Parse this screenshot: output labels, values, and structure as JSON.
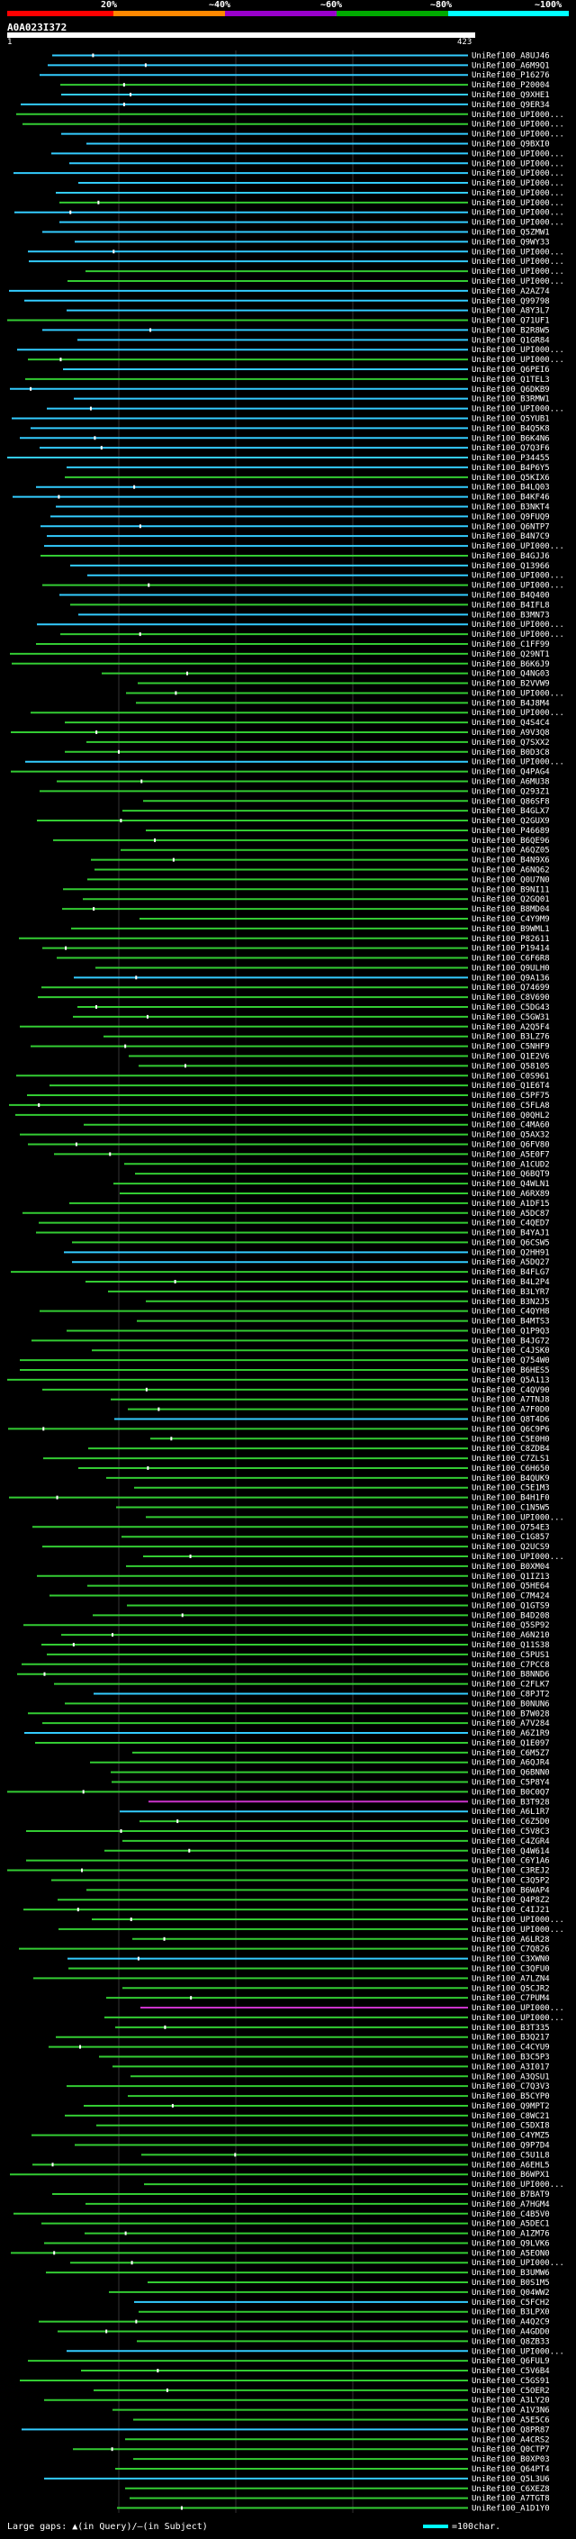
{
  "scale": {
    "labels": [
      "20%",
      "~40%",
      "~60%",
      "~80%",
      "~100%"
    ],
    "colors": [
      "#ff0000",
      "#ff8800",
      "#9900cc",
      "#00aa00",
      "#00ffff"
    ]
  },
  "query": {
    "id": "A0A023I372",
    "start": "1",
    "end": "423"
  },
  "colors": {
    "cyan": "#33ccff",
    "green": "#33cc33",
    "magenta": "#cc33cc",
    "gap": "#ffffff"
  },
  "hits": [
    "UniRef100_A8UJ46",
    "UniRef100_A6M9Q1",
    "UniRef100_P16276",
    "UniRef100_P20004",
    "UniRef100_Q9XHE1",
    "UniRef100_Q9ER34",
    "UniRef100_UPI000...",
    "UniRef100_UPI000...",
    "UniRef100_UPI000...",
    "UniRef100_Q9BXI0",
    "UniRef100_UPI000...",
    "UniRef100_UPI000...",
    "UniRef100_UPI000...",
    "UniRef100_UPI000...",
    "UniRef100_UPI000...",
    "UniRef100_UPI000...",
    "UniRef100_UPI000...",
    "UniRef100_UPI000...",
    "UniRef100_Q5ZMW1",
    "UniRef100_Q9WY33",
    "UniRef100_UPI000...",
    "UniRef100_UPI000...",
    "UniRef100_UPI000...",
    "UniRef100_UPI000...",
    "UniRef100_A2AZ74",
    "UniRef100_Q99798",
    "UniRef100_A8Y3L7",
    "UniRef100_Q71UF1",
    "UniRef100_B2R8W5",
    "UniRef100_Q1GR84",
    "UniRef100_UPI000...",
    "UniRef100_UPI000...",
    "UniRef100_Q6PEI6",
    "UniRef100_Q1TEL3",
    "UniRef100_Q6DKB9",
    "UniRef100_B3RMW1",
    "UniRef100_UPI000...",
    "UniRef100_Q5YUB1",
    "UniRef100_B4Q5K8",
    "UniRef100_B6K4N6",
    "UniRef100_Q7Q3F6",
    "UniRef100_P34455",
    "UniRef100_B4P6Y5",
    "UniRef100_Q5KIX6",
    "UniRef100_B4LQ03",
    "UniRef100_B4KF46",
    "UniRef100_B3NKT4",
    "UniRef100_Q9FUQ9",
    "UniRef100_Q6NTP7",
    "UniRef100_B4N7C9",
    "UniRef100_UPI000...",
    "UniRef100_B4GJJ6",
    "UniRef100_Q13966",
    "UniRef100_UPI000...",
    "UniRef100_UPI000...",
    "UniRef100_B4Q400",
    "UniRef100_B4IFL8",
    "UniRef100_B3MN73",
    "UniRef100_UPI000...",
    "UniRef100_UPI000...",
    "UniRef100_C1FF99",
    "UniRef100_Q29NT1",
    "UniRef100_B6K6J9",
    "UniRef100_Q4NG03",
    "UniRef100_B2VVW9",
    "UniRef100_UPI000...",
    "UniRef100_B4J8M4",
    "UniRef100_UPI000...",
    "UniRef100_Q4S4C4",
    "UniRef100_A9V3Q8",
    "UniRef100_Q7SXX2",
    "UniRef100_B0D3C8",
    "UniRef100_UPI000...",
    "UniRef100_Q4PAG4",
    "UniRef100_A6MU38",
    "UniRef100_Q293Z1",
    "UniRef100_Q86SF8",
    "UniRef100_B4GLX7",
    "UniRef100_Q2GUX9",
    "UniRef100_P46689",
    "UniRef100_B6QE96",
    "UniRef100_A6QZ05",
    "UniRef100_B4N9X6",
    "UniRef100_A6NQ62",
    "UniRef100_Q0U7N0",
    "UniRef100_B9NI11",
    "UniRef100_Q2GQ01",
    "UniRef100_B8MD04",
    "UniRef100_C4Y9M9",
    "UniRef100_B9WML1",
    "UniRef100_P82611",
    "UniRef100_P19414",
    "UniRef100_C6F6R8",
    "UniRef100_Q9ULH0",
    "UniRef100_Q9A136",
    "UniRef100_Q74699",
    "UniRef100_C8V690",
    "UniRef100_C5DG43",
    "UniRef100_C5GW31",
    "UniRef100_A2Q5F4",
    "UniRef100_B3LZ76",
    "UniRef100_C5NHF9",
    "UniRef100_Q1E2V6",
    "UniRef100_Q58105",
    "UniRef100_C0S961",
    "UniRef100_Q1E6T4",
    "UniRef100_C5PF75",
    "UniRef100_C5FLA8",
    "UniRef100_Q0QHL2",
    "UniRef100_C4MA60",
    "UniRef100_Q5AX32",
    "UniRef100_Q6FV80",
    "UniRef100_A5E0F7",
    "UniRef100_A1CUD2",
    "UniRef100_Q6BQT9",
    "UniRef100_Q4WLN1",
    "UniRef100_A6RX89",
    "UniRef100_A1DF15",
    "UniRef100_A5DC87",
    "UniRef100_C4QED7",
    "UniRef100_B4YAJ1",
    "UniRef100_Q6CSW5",
    "UniRef100_Q2HH91",
    "UniRef100_A5DQ27",
    "UniRef100_B4FLG7",
    "UniRef100_B4L2P4",
    "UniRef100_B3LYR7",
    "UniRef100_B3N2J5",
    "UniRef100_C4QYH8",
    "UniRef100_B4MTS3",
    "UniRef100_Q1P9Q3",
    "UniRef100_B4JG72",
    "UniRef100_C4JSK0",
    "UniRef100_Q754W0",
    "UniRef100_B6HES5",
    "UniRef100_Q5A113",
    "UniRef100_C4QV90",
    "UniRef100_A7TNJ8",
    "UniRef100_A7F0D0",
    "UniRef100_Q8T4D6",
    "UniRef100_Q6C9P6",
    "UniRef100_C5E0H0",
    "UniRef100_C8ZDB4",
    "UniRef100_C7ZLS1",
    "UniRef100_C6H650",
    "UniRef100_B4QUK9",
    "UniRef100_C5E1M3",
    "UniRef100_B4H1F0",
    "UniRef100_C1N5W5",
    "UniRef100_UPI000...",
    "UniRef100_Q754E3",
    "UniRef100_C1G857",
    "UniRef100_Q2UCS9",
    "UniRef100_UPI000...",
    "UniRef100_B0XM04",
    "UniRef100_Q1IZ13",
    "UniRef100_Q5HE64",
    "UniRef100_C7M424",
    "UniRef100_Q1GTS9",
    "UniRef100_B4D208",
    "UniRef100_Q5SP92",
    "UniRef100_A6N210",
    "UniRef100_Q11S38",
    "UniRef100_C5PUS1",
    "UniRef100_C7PCC8",
    "UniRef100_B8NND6",
    "UniRef100_C2FLK7",
    "UniRef100_C8PJT2",
    "UniRef100_B0NUN6",
    "UniRef100_B7W028",
    "UniRef100_A7V284",
    "UniRef100_A6Z1R9",
    "UniRef100_Q1E097",
    "UniRef100_C6M5Z7",
    "UniRef100_A6QJR4",
    "UniRef100_Q6BNN0",
    "UniRef100_C5P8Y4",
    "UniRef100_B0C0Q7",
    "UniRef100_B3T928",
    "UniRef100_A6L1R7",
    "UniRef100_C6Z5D0",
    "UniRef100_C5V8C3",
    "UniRef100_C4ZGR4",
    "UniRef100_Q4W614",
    "UniRef100_C6Y1A6",
    "UniRef100_C3REJ2",
    "UniRef100_C3Q5P2",
    "UniRef100_B6WAP4",
    "UniRef100_Q4P8Z2",
    "UniRef100_C4IJ21",
    "UniRef100_UPI000...",
    "UniRef100_UPI000...",
    "UniRef100_A6LR28",
    "UniRef100_C7Q826",
    "UniRef100_C3XWN0",
    "UniRef100_C3QFU0",
    "UniRef100_A7LZN4",
    "UniRef100_Q5CJR2",
    "UniRef100_C7PUM4",
    "UniRef100_UPI000...",
    "UniRef100_UPI000...",
    "UniRef100_B3T335",
    "UniRef100_B3Q217",
    "UniRef100_C4CYU9",
    "UniRef100_B3C5P3",
    "UniRef100_A3I017",
    "UniRef100_A3QSU1",
    "UniRef100_C7Q3V3",
    "UniRef100_B5CYP0",
    "UniRef100_Q9MPT2",
    "UniRef100_C8WC21",
    "UniRef100_C5DXI8",
    "UniRef100_C4YMZ5",
    "UniRef100_Q9P7D4",
    "UniRef100_C5U1L8",
    "UniRef100_A6EHL5",
    "UniRef100_B6WPX1",
    "UniRef100_UPI000...",
    "UniRef100_B7BAT9",
    "UniRef100_A7HGM4",
    "UniRef100_C4B5V0",
    "UniRef100_A5DEC1",
    "UniRef100_A1ZM76",
    "UniRef100_Q9LVK6",
    "UniRef100_A5EON0",
    "UniRef100_UPI000...",
    "UniRef100_B3UMW6",
    "UniRef100_B0S1M5",
    "UniRef100_Q04WW2",
    "UniRef100_C5FCH2",
    "UniRef100_B3LPX0",
    "UniRef100_A4Q2C9",
    "UniRef100_A4GDD0",
    "UniRef100_Q8ZB33",
    "UniRef100_UPI000...",
    "UniRef100_Q6FUL9",
    "UniRef100_C5V6B4",
    "UniRef100_C5GS91",
    "UniRef100_C5OER2",
    "UniRef100_A3LY20",
    "UniRef100_A1V3N6",
    "UniRef100_A5E5C6",
    "UniRef100_Q8PR87",
    "UniRef100_A4CRS2",
    "UniRef100_Q0CTP7",
    "UniRef100_B0XP03",
    "UniRef100_Q64PT4",
    "UniRef100_Q5L3U6",
    "UniRef100_C6XEZ8",
    "UniRef100_A7TGT8",
    "UniRef100_A1D1Y0"
  ],
  "footer": {
    "left": "Large gaps: ▲(in Query)/—(in Subject)",
    "right": "=100char."
  }
}
